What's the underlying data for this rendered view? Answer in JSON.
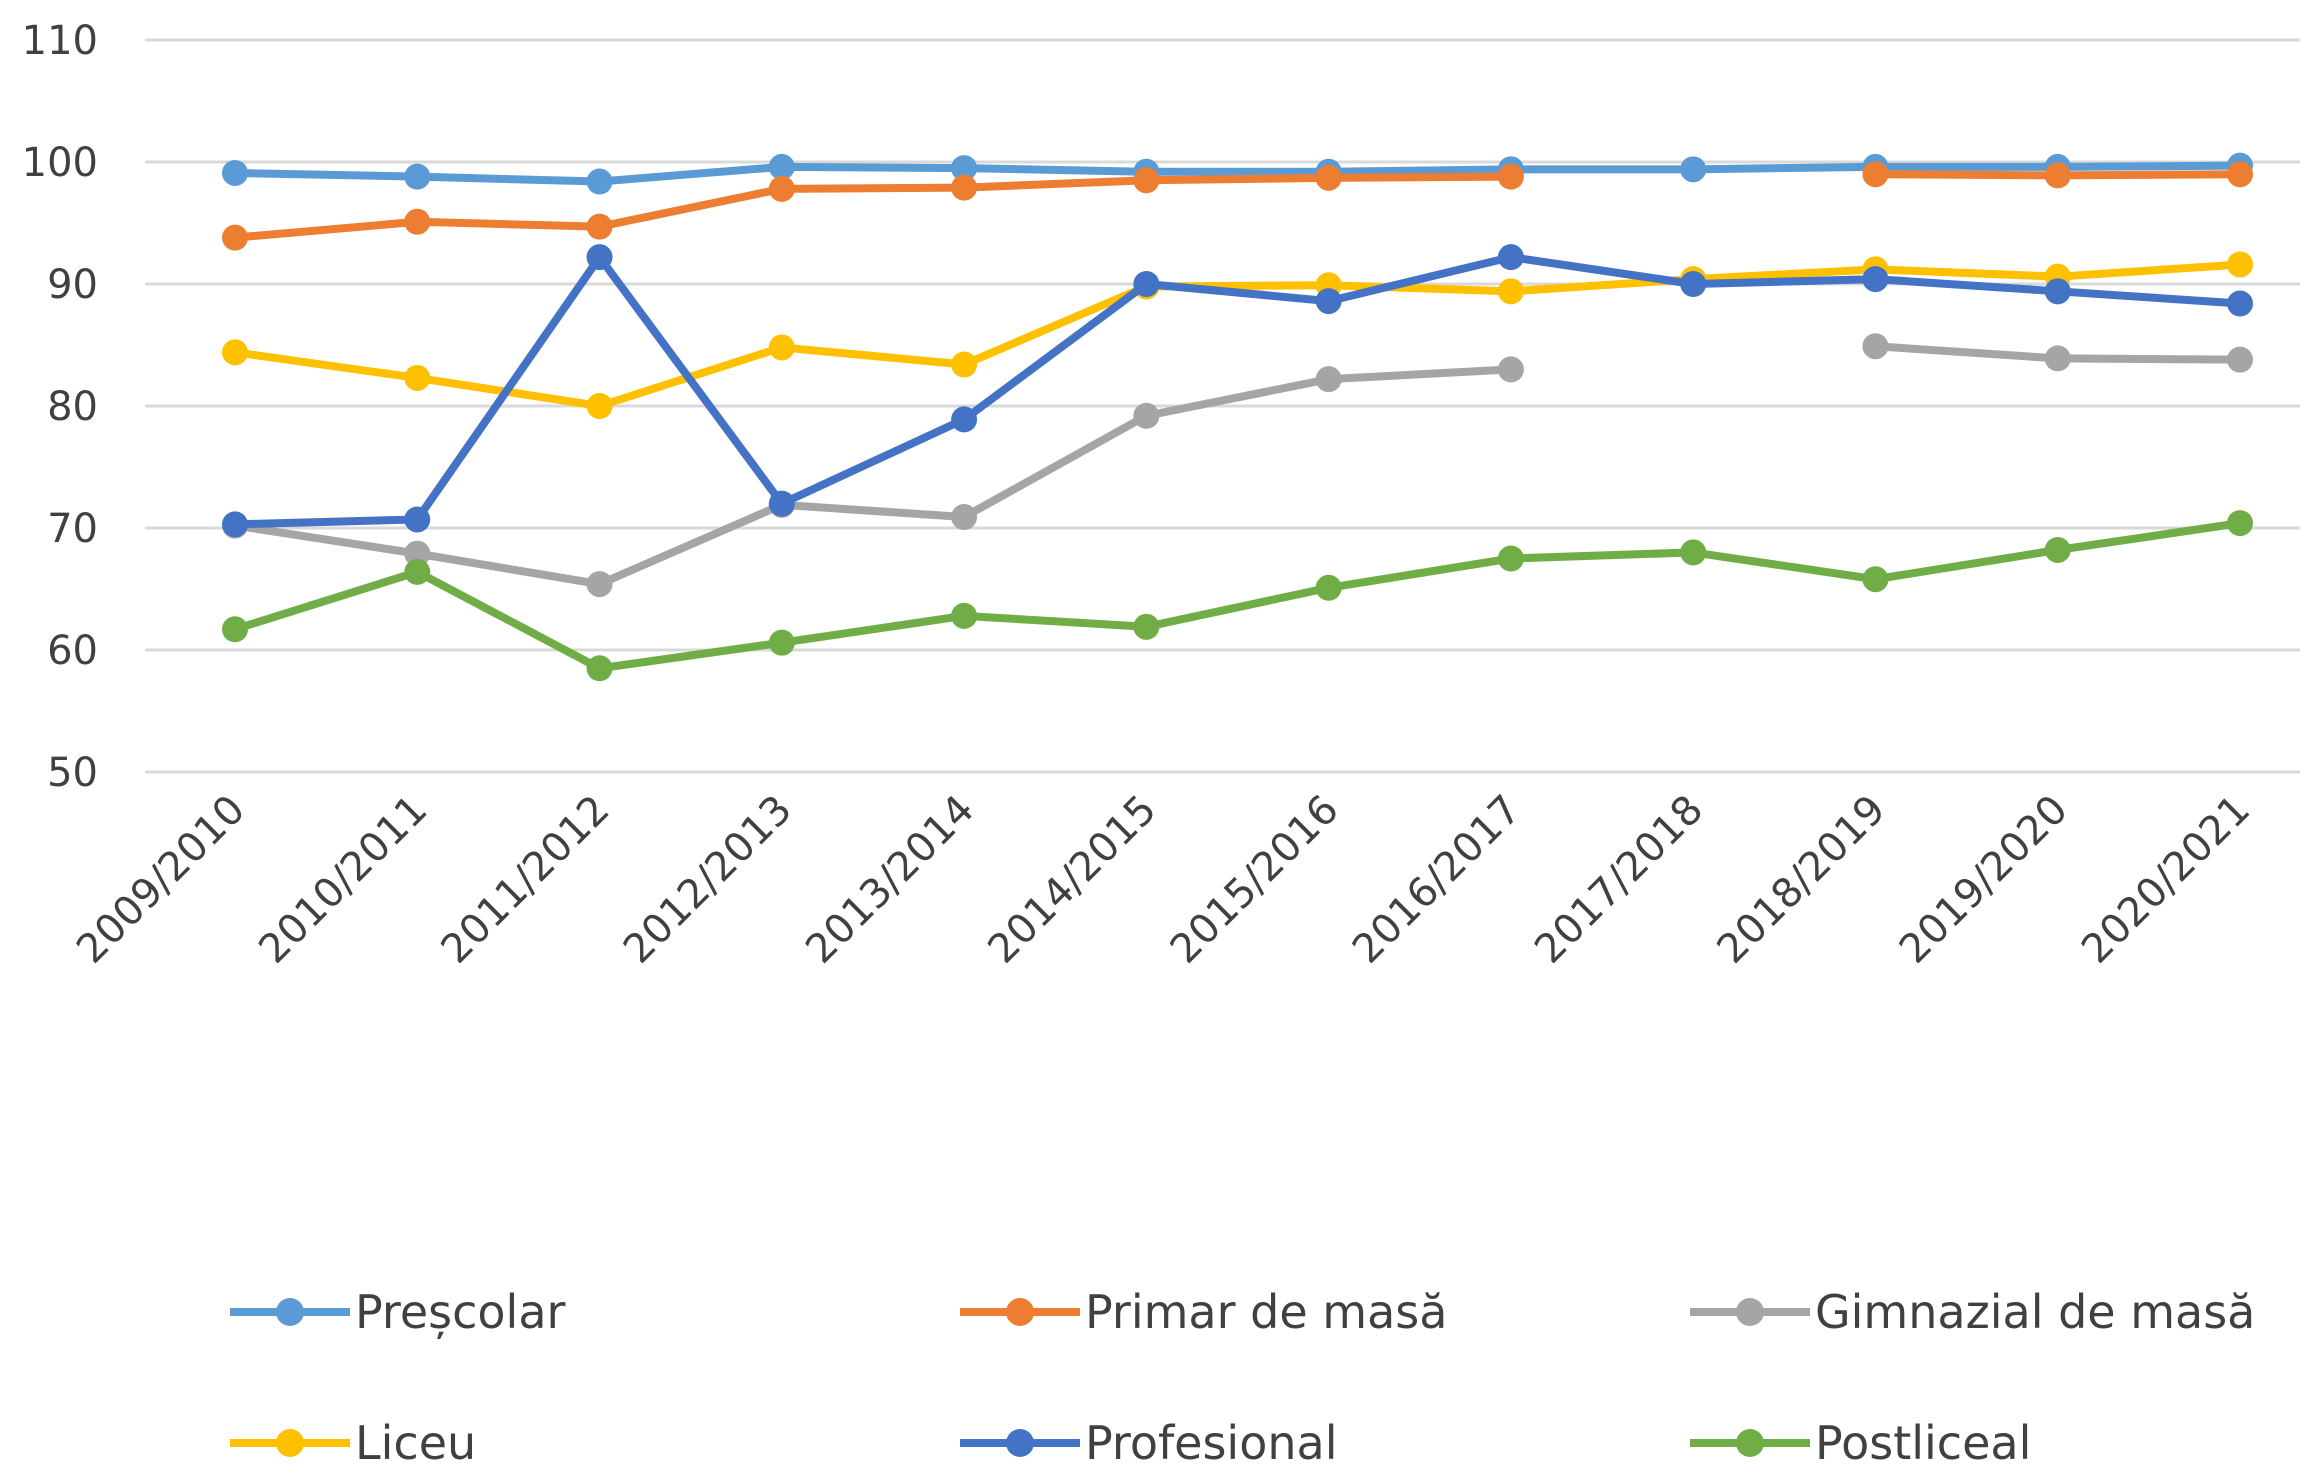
{
  "chart_data": {
    "type": "line",
    "title": "",
    "xlabel": "",
    "ylabel": "",
    "ylim": [
      50,
      110
    ],
    "yticks": [
      "50",
      "60",
      "70",
      "80",
      "90",
      "100",
      "110"
    ],
    "grid": true,
    "legend_position": "bottom",
    "categories": [
      "2009/2010",
      "2010/2011",
      "2011/2012",
      "2012/2013",
      "2013/2014",
      "2014/2015",
      "2015/2016",
      "2016/2017",
      "2017/2018",
      "2018/2019",
      "2019/2020",
      "2020/2021"
    ],
    "series": [
      {
        "name": "Preșcolar",
        "color": "#5b9bd5",
        "values": [
          99.1,
          98.8,
          98.4,
          99.6,
          99.5,
          99.2,
          99.2,
          99.4,
          99.4,
          99.6,
          99.6,
          99.7
        ]
      },
      {
        "name": "Primar de masă",
        "color": "#ed7d31",
        "values": [
          93.8,
          95.1,
          94.7,
          97.8,
          97.9,
          98.5,
          98.7,
          98.8,
          null,
          99.0,
          98.9,
          99.0
        ]
      },
      {
        "name": "Gimnazial de masă",
        "color": "#a5a5a5",
        "values": [
          70.2,
          67.9,
          65.4,
          71.9,
          70.9,
          79.2,
          82.2,
          83.0,
          null,
          84.9,
          83.9,
          83.8
        ]
      },
      {
        "name": "Liceu",
        "color": "#ffc000",
        "values": [
          84.4,
          82.3,
          80.0,
          84.8,
          83.4,
          89.8,
          89.9,
          89.4,
          90.4,
          91.2,
          90.6,
          91.6
        ]
      },
      {
        "name": "Profesional",
        "color": "#4472c4",
        "values": [
          70.3,
          70.7,
          92.2,
          72.0,
          78.9,
          90.0,
          88.6,
          92.2,
          90.0,
          90.4,
          89.4,
          88.4
        ]
      },
      {
        "name": "Postliceal",
        "color": "#70ad47",
        "values": [
          61.7,
          66.4,
          58.5,
          60.6,
          62.8,
          61.9,
          65.1,
          67.5,
          68.0,
          65.8,
          68.2,
          70.4
        ]
      }
    ]
  }
}
